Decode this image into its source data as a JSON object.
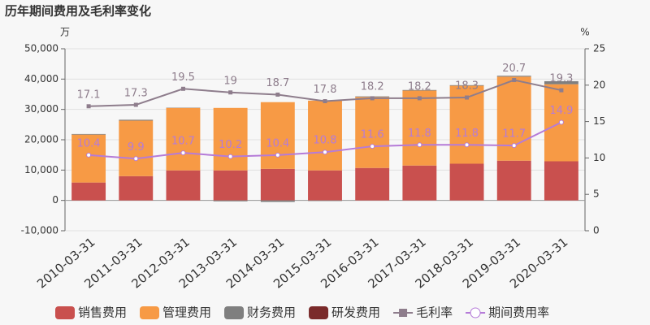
{
  "chart_data": {
    "type": "bar",
    "title": "历年期间费用及毛利率变化",
    "y_label": "万",
    "y2_label": "%",
    "categories": [
      "2010-03-31",
      "2011-03-31",
      "2012-03-31",
      "2013-03-31",
      "2014-03-31",
      "2015-03-31",
      "2016-03-31",
      "2017-03-31",
      "2018-03-31",
      "2019-03-31",
      "2020-03-31"
    ],
    "series": [
      {
        "name": "销售费用",
        "type": "bar",
        "color": "#c9504e",
        "values": [
          5900,
          8000,
          9900,
          9900,
          10400,
          9900,
          10700,
          11500,
          12100,
          13100,
          12900
        ]
      },
      {
        "name": "管理费用",
        "type": "bar",
        "color": "#f79a45",
        "values": [
          15800,
          18300,
          20600,
          20600,
          22000,
          23000,
          23400,
          24700,
          25700,
          27700,
          25400
        ]
      },
      {
        "name": "财务费用",
        "type": "bar",
        "color": "#7f7f7f",
        "values": [
          200,
          300,
          100,
          -300,
          -500,
          -200,
          200,
          200,
          200,
          300,
          1000
        ]
      },
      {
        "name": "研发费用",
        "type": "bar",
        "color": "#7a2a2a",
        "values": [
          0,
          0,
          0,
          0,
          0,
          0,
          0,
          0,
          0,
          0,
          0
        ]
      },
      {
        "name": "毛利率",
        "type": "line",
        "axis": "y2",
        "color": "#8e7d8c",
        "marker": "square",
        "values": [
          17.1,
          17.3,
          19.5,
          19,
          18.7,
          17.8,
          18.2,
          18.2,
          18.3,
          20.7,
          19.3
        ]
      },
      {
        "name": "期间费用率",
        "type": "line",
        "axis": "y2",
        "color": "#b57bd8",
        "marker": "circle",
        "values": [
          10.4,
          9.9,
          10.7,
          10.2,
          10.4,
          10.8,
          11.6,
          11.8,
          11.8,
          11.7,
          14.9
        ]
      }
    ],
    "ylim": [
      -10000,
      50000
    ],
    "yticks": [
      {
        "value": -10000,
        "label": "-10,000"
      },
      0,
      {
        "value": 10000,
        "label": "10,000"
      },
      {
        "value": 20000,
        "label": "20,000"
      },
      {
        "value": 30000,
        "label": "30,000"
      },
      {
        "value": 40000,
        "label": "40,000"
      },
      {
        "value": 50000,
        "label": "50,000"
      }
    ],
    "y2lim": [
      0,
      25
    ],
    "y2ticks": [
      0,
      5,
      10,
      15,
      20,
      25
    ],
    "grid": true
  }
}
